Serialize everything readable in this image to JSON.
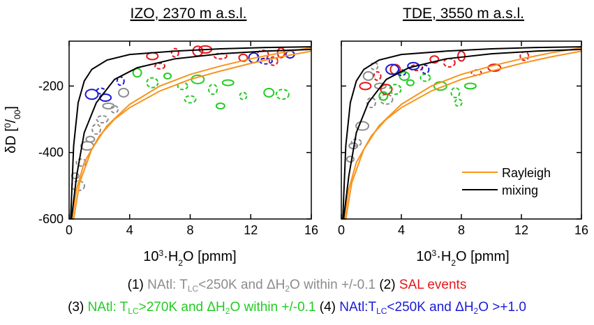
{
  "chart_data": [
    {
      "type": "scatter",
      "title": "IZO, 2370 m a.s.l.",
      "xlabel_prefix": "10",
      "xlabel_sup": "3",
      "xlabel_mid": "·H",
      "xlabel_sub": "2",
      "xlabel_suffix": "O [pmm]",
      "ylabel_main": "δD [",
      "ylabel_sup": "0",
      "ylabel_slash": "/",
      "ylabel_sub": "00",
      "ylabel_end": "]",
      "xlim": [
        0,
        16
      ],
      "ylim": [
        -600,
        -65
      ],
      "xticks": [
        0,
        4,
        8,
        12,
        16
      ],
      "xtick_labels": [
        "0",
        "4",
        "8",
        "12",
        "16"
      ],
      "yticks": [
        -600,
        -400,
        -200
      ],
      "ytick_labels": [
        "-600",
        "-400",
        "-200"
      ],
      "series": [
        {
          "color": "#8c8c8c",
          "points": [
            [
              0.4,
              -470
            ],
            [
              0.8,
              -430
            ],
            [
              1.2,
              -380
            ],
            [
              1.8,
              -330
            ],
            [
              2.6,
              -260
            ],
            [
              3.0,
              -270
            ],
            [
              3.6,
              -220
            ],
            [
              0.6,
              -500
            ],
            [
              1.4,
              -360
            ],
            [
              2.2,
              -300
            ]
          ]
        },
        {
          "color": "#e8161b",
          "points": [
            [
              5.5,
              -110
            ],
            [
              7,
              -100
            ],
            [
              8.5,
              -95
            ],
            [
              10,
              -110
            ],
            [
              11.5,
              -115
            ],
            [
              12.8,
              -105
            ],
            [
              14,
              -100
            ],
            [
              6,
              -140
            ],
            [
              9,
              -90
            ],
            [
              13.5,
              -125
            ]
          ]
        },
        {
          "color": "#22cc22",
          "points": [
            [
              4.5,
              -160
            ],
            [
              5.5,
              -190
            ],
            [
              6.5,
              -170
            ],
            [
              7.5,
              -200
            ],
            [
              8.5,
              -180
            ],
            [
              9.5,
              -210
            ],
            [
              10.5,
              -190
            ],
            [
              11.5,
              -230
            ],
            [
              13.2,
              -220
            ],
            [
              14.1,
              -225
            ],
            [
              10,
              -260
            ],
            [
              8,
              -240
            ]
          ]
        },
        {
          "color": "#1a1ad6",
          "points": [
            [
              1.5,
              -225
            ],
            [
              2.1,
              -215
            ],
            [
              2.4,
              -235
            ],
            [
              3.4,
              -185
            ],
            [
              12.2,
              -115
            ],
            [
              13.0,
              -125
            ],
            [
              14.6,
              -105
            ]
          ]
        }
      ],
      "curves": [
        {
          "kind": "Rayleigh",
          "color": "#f7941d",
          "points": [
            [
              0.2,
              -600
            ],
            [
              0.5,
              -510
            ],
            [
              1,
              -430
            ],
            [
              2,
              -350
            ],
            [
              3,
              -300
            ],
            [
              4,
              -265
            ],
            [
              6,
              -215
            ],
            [
              8,
              -180
            ],
            [
              10,
              -155
            ],
            [
              12,
              -132
            ],
            [
              14,
              -112
            ],
            [
              16,
              -95
            ]
          ]
        },
        {
          "kind": "Rayleigh",
          "color": "#f7941d",
          "points": [
            [
              0.3,
              -600
            ],
            [
              0.7,
              -490
            ],
            [
              1.5,
              -390
            ],
            [
              2.5,
              -320
            ],
            [
              4,
              -255
            ],
            [
              6,
              -200
            ],
            [
              8,
              -165
            ],
            [
              10,
              -140
            ],
            [
              12,
              -118
            ],
            [
              14,
              -100
            ],
            [
              16,
              -85
            ]
          ]
        },
        {
          "kind": "mixing",
          "color": "#000000",
          "points": [
            [
              0.1,
              -600
            ],
            [
              0.3,
              -380
            ],
            [
              0.6,
              -250
            ],
            [
              1,
              -185
            ],
            [
              1.5,
              -150
            ],
            [
              2.5,
              -122
            ],
            [
              4,
              -105
            ],
            [
              7,
              -95
            ],
            [
              10,
              -88
            ],
            [
              13,
              -84
            ],
            [
              16,
              -82
            ]
          ]
        },
        {
          "kind": "mixing",
          "color": "#000000",
          "points": [
            [
              0.15,
              -600
            ],
            [
              0.5,
              -470
            ],
            [
              1,
              -340
            ],
            [
              1.8,
              -250
            ],
            [
              3,
              -180
            ],
            [
              4.5,
              -145
            ],
            [
              7,
              -118
            ],
            [
              10,
              -103
            ],
            [
              13,
              -95
            ],
            [
              16,
              -90
            ]
          ]
        }
      ]
    },
    {
      "type": "scatter",
      "title": "TDE, 3550 m a.s.l.",
      "xlabel_prefix": "10",
      "xlabel_sup": "3",
      "xlabel_mid": "·H",
      "xlabel_sub": "2",
      "xlabel_suffix": "O [pmm]",
      "xlim": [
        0,
        16
      ],
      "ylim": [
        -600,
        -65
      ],
      "xticks": [
        0,
        4,
        8,
        12,
        16
      ],
      "xtick_labels": [
        "0",
        "4",
        "8",
        "12",
        "16"
      ],
      "yticks": [
        -600,
        -400,
        -200
      ],
      "legend": {
        "position": "bottom-right",
        "entries": [
          {
            "label": "Rayleigh",
            "color": "#f7941d"
          },
          {
            "label": "mixing",
            "color": "#000000"
          }
        ]
      },
      "series": [
        {
          "color": "#8c8c8c",
          "points": [
            [
              0.6,
              -420
            ],
            [
              1,
              -370
            ],
            [
              1.4,
              -320
            ],
            [
              2,
              -250
            ],
            [
              2.6,
              -200
            ],
            [
              2.2,
              -140
            ],
            [
              1.8,
              -170
            ],
            [
              3,
              -240
            ],
            [
              0.8,
              -380
            ]
          ]
        },
        {
          "color": "#e8161b",
          "points": [
            [
              1.6,
              -200
            ],
            [
              2.4,
              -170
            ],
            [
              3.6,
              -150
            ],
            [
              5,
              -145
            ],
            [
              6.2,
              -120
            ],
            [
              7.2,
              -130
            ],
            [
              8,
              -110
            ],
            [
              9,
              -160
            ],
            [
              10.2,
              -145
            ],
            [
              12.2,
              -110
            ],
            [
              3,
              -210
            ]
          ]
        },
        {
          "color": "#22cc22",
          "points": [
            [
              2.8,
              -230
            ],
            [
              3.6,
              -210
            ],
            [
              4.6,
              -190
            ],
            [
              5.6,
              -175
            ],
            [
              6.6,
              -200
            ],
            [
              7.6,
              -220
            ],
            [
              8.6,
              -200
            ],
            [
              7.8,
              -250
            ],
            [
              4.2,
              -170
            ]
          ]
        },
        {
          "color": "#1a1ad6",
          "points": [
            [
              3.4,
              -150
            ],
            [
              4.0,
              -160
            ],
            [
              4.8,
              -140
            ],
            [
              5.6,
              -150
            ]
          ]
        }
      ],
      "curves": [
        {
          "kind": "Rayleigh",
          "color": "#f7941d",
          "points": [
            [
              0.2,
              -600
            ],
            [
              0.5,
              -510
            ],
            [
              1,
              -430
            ],
            [
              2,
              -350
            ],
            [
              3,
              -300
            ],
            [
              4,
              -265
            ],
            [
              6,
              -215
            ],
            [
              8,
              -180
            ],
            [
              10,
              -155
            ],
            [
              12,
              -132
            ],
            [
              14,
              -112
            ],
            [
              16,
              -95
            ]
          ]
        },
        {
          "kind": "Rayleigh",
          "color": "#f7941d",
          "points": [
            [
              0.3,
              -600
            ],
            [
              0.7,
              -490
            ],
            [
              1.5,
              -390
            ],
            [
              2.5,
              -320
            ],
            [
              4,
              -255
            ],
            [
              6,
              -200
            ],
            [
              8,
              -165
            ],
            [
              10,
              -140
            ],
            [
              12,
              -118
            ],
            [
              14,
              -100
            ],
            [
              16,
              -85
            ]
          ]
        },
        {
          "kind": "mixing",
          "color": "#000000",
          "points": [
            [
              0.1,
              -600
            ],
            [
              0.3,
              -380
            ],
            [
              0.6,
              -250
            ],
            [
              1,
              -185
            ],
            [
              1.5,
              -150
            ],
            [
              2.5,
              -122
            ],
            [
              4,
              -105
            ],
            [
              7,
              -95
            ],
            [
              10,
              -88
            ],
            [
              13,
              -84
            ],
            [
              16,
              -82
            ]
          ]
        },
        {
          "kind": "mixing",
          "color": "#000000",
          "points": [
            [
              0.15,
              -600
            ],
            [
              0.5,
              -470
            ],
            [
              1,
              -340
            ],
            [
              1.8,
              -250
            ],
            [
              3,
              -180
            ],
            [
              4.5,
              -145
            ],
            [
              7,
              -118
            ],
            [
              10,
              -103
            ],
            [
              13,
              -95
            ],
            [
              16,
              -90
            ]
          ]
        }
      ]
    }
  ],
  "caption": {
    "line1": {
      "p1": "(1) ",
      "gray_a": "NAtl: T",
      "gray_sub": "LC",
      "gray_b": "<250K and ΔH",
      "gray_sub2": "2",
      "gray_c": "O within +/-0.1",
      "p2": " (2) ",
      "red": "SAL events"
    },
    "line2": {
      "p3": "(3) ",
      "green_a": "NAtl: T",
      "green_sub": "LC",
      "green_b": ">270K and ΔH",
      "green_sub2": "2",
      "green_c": "O within +/-0.1",
      "p4": " (4) ",
      "blue_a": "NAtl:T",
      "blue_sub": "LC",
      "blue_b": "<250K and ΔH",
      "blue_sub2": "2",
      "blue_c": "O >+1.0"
    }
  }
}
